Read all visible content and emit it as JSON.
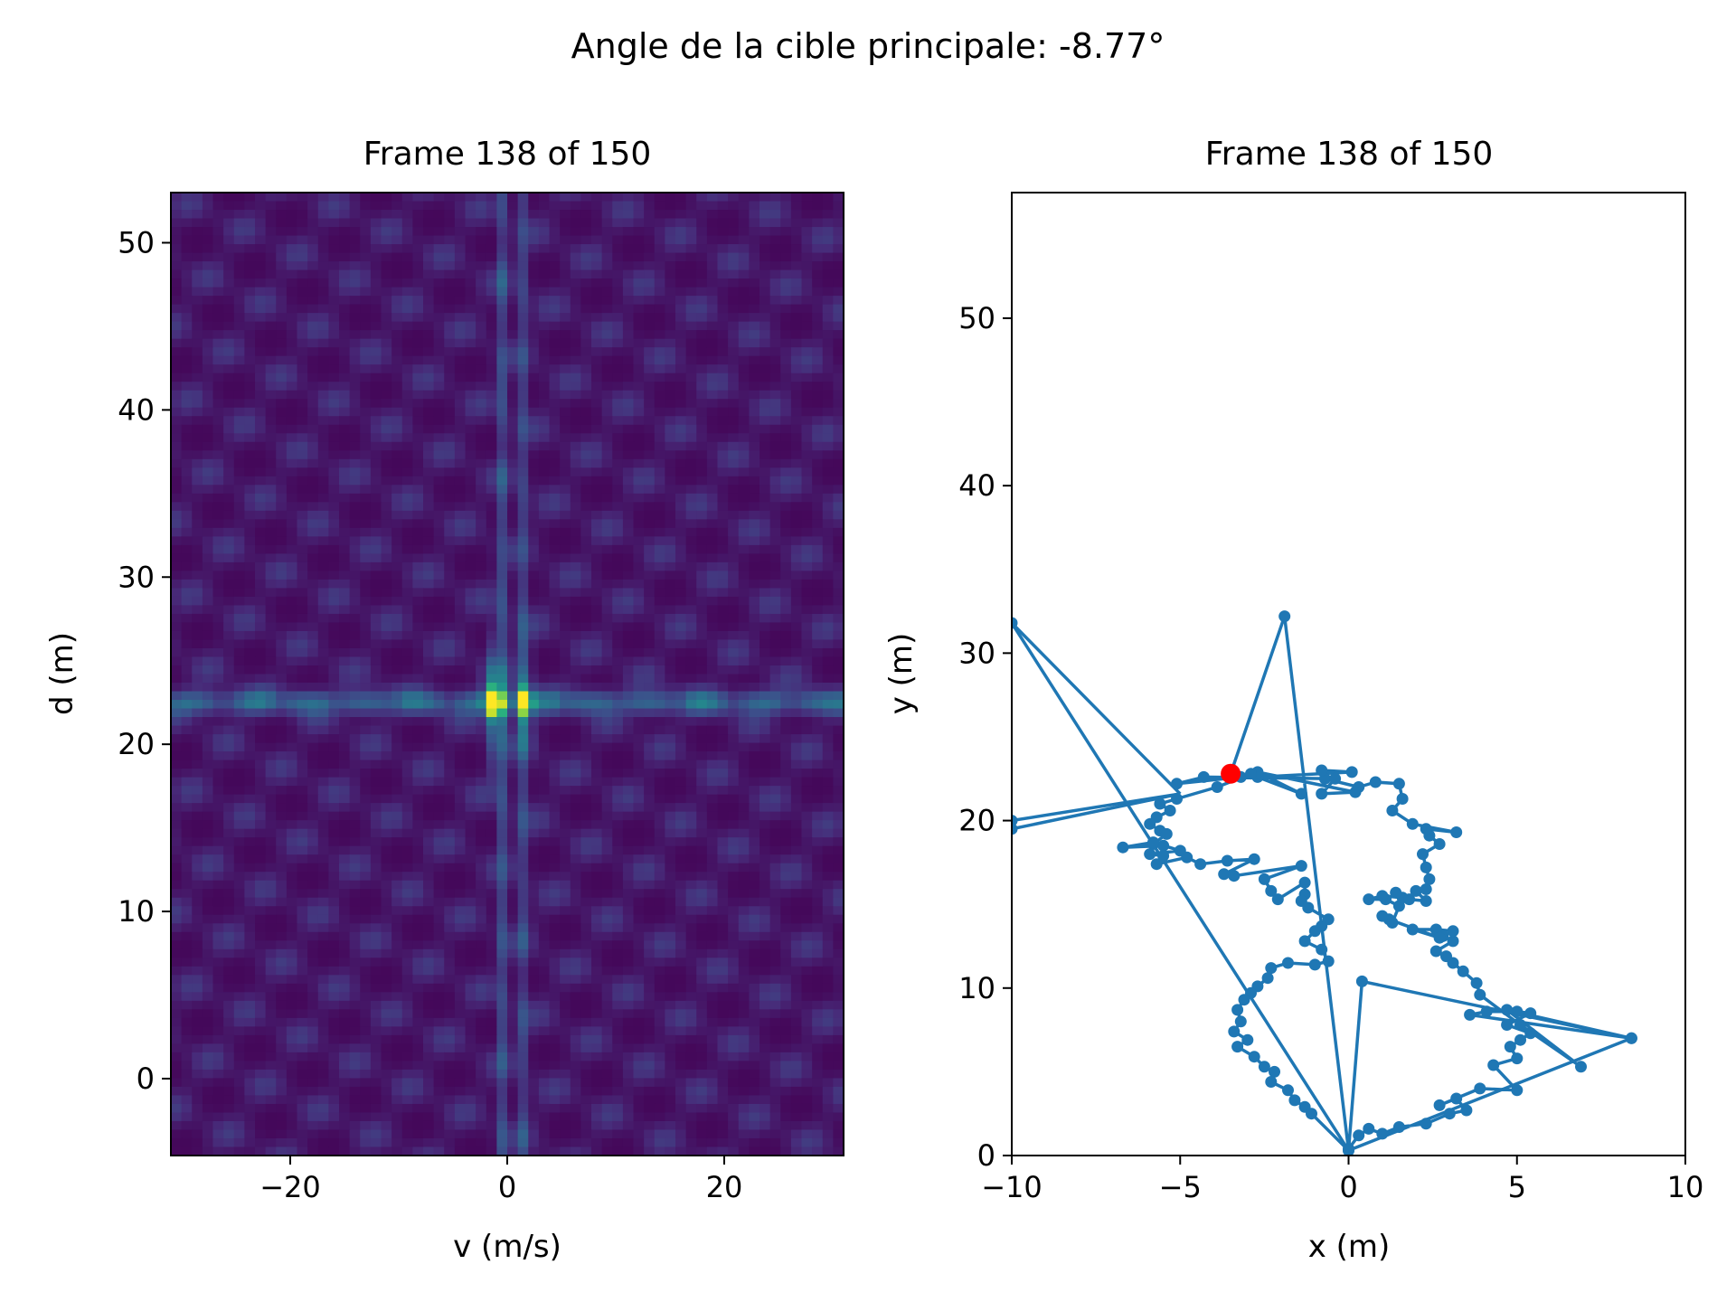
{
  "figure": {
    "suptitle": "Angle de la cible principale: -8.77°"
  },
  "colors": {
    "line": "#1f77b4",
    "marker_current": "#ff0000",
    "heatmap_low": "#440154",
    "heatmap_high": "#fde725"
  },
  "chart_data": [
    {
      "type": "heatmap",
      "title": "Frame 138 of 150",
      "xlabel": "v (m/s)",
      "ylabel": "d (m)",
      "xlim": [
        -31,
        31
      ],
      "ylim": [
        -4.6,
        53
      ],
      "xticks": [
        -20,
        0,
        20
      ],
      "xtick_labels": [
        "−20",
        "0",
        "20"
      ],
      "yticks": [
        0,
        10,
        20,
        30,
        40,
        50
      ],
      "ytick_labels": [
        "0",
        "10",
        "20",
        "30",
        "40",
        "50"
      ],
      "colormap": "viridis",
      "grid": false,
      "peaks": [
        {
          "v": -1.2,
          "d": 22.5,
          "level": 1.0
        },
        {
          "v": 1.5,
          "d": 22.5,
          "level": 0.62
        }
      ],
      "stripes": [
        {
          "orientation": "horizontal",
          "d": 22.5,
          "level": 0.3
        },
        {
          "orientation": "vertical",
          "v": -0.3,
          "level": 0.2
        },
        {
          "orientation": "vertical",
          "v": 1.5,
          "level": 0.15
        }
      ]
    },
    {
      "type": "line",
      "title": "Frame 138 of 150",
      "xlabel": "x (m)",
      "ylabel": "y (m)",
      "xlim": [
        -10,
        10
      ],
      "ylim": [
        0,
        57.5
      ],
      "xticks": [
        -10,
        -5,
        0,
        5,
        10
      ],
      "xtick_labels": [
        "−10",
        "−5",
        "0",
        "5",
        "10"
      ],
      "yticks": [
        0,
        10,
        20,
        30,
        40,
        50
      ],
      "ytick_labels": [
        "0",
        "10",
        "20",
        "30",
        "40",
        "50"
      ],
      "grid": false,
      "trajectory": [
        [
          0.0,
          0.4
        ],
        [
          0.3,
          1.2
        ],
        [
          0.6,
          1.6
        ],
        [
          1.0,
          1.3
        ],
        [
          1.5,
          1.7
        ],
        [
          2.3,
          1.9
        ],
        [
          3.0,
          2.5
        ],
        [
          3.5,
          2.7
        ],
        [
          3.2,
          3.4
        ],
        [
          2.7,
          3.0
        ],
        [
          3.9,
          4.0
        ],
        [
          5.0,
          3.9
        ],
        [
          4.3,
          5.4
        ],
        [
          5.0,
          5.8
        ],
        [
          4.8,
          6.5
        ],
        [
          5.1,
          6.9
        ],
        [
          5.4,
          7.3
        ],
        [
          4.7,
          7.8
        ],
        [
          5.4,
          8.5
        ],
        [
          5.0,
          8.6
        ],
        [
          4.1,
          8.6
        ],
        [
          3.6,
          8.4
        ],
        [
          8.4,
          7.0
        ],
        [
          4.7,
          8.7
        ],
        [
          6.9,
          5.3
        ],
        [
          5.1,
          7.8
        ],
        [
          3.9,
          9.6
        ],
        [
          3.8,
          10.3
        ],
        [
          3.4,
          11.0
        ],
        [
          3.1,
          11.5
        ],
        [
          2.9,
          11.9
        ],
        [
          2.6,
          12.2
        ],
        [
          3.1,
          12.8
        ],
        [
          2.8,
          13.1
        ],
        [
          3.1,
          13.4
        ],
        [
          2.6,
          13.5
        ],
        [
          1.9,
          13.5
        ],
        [
          2.7,
          13.0
        ],
        [
          1.2,
          14.1
        ],
        [
          1.0,
          14.3
        ],
        [
          1.3,
          13.9
        ],
        [
          1.5,
          14.9
        ],
        [
          1.1,
          15.3
        ],
        [
          0.6,
          15.3
        ],
        [
          1.0,
          15.5
        ],
        [
          1.6,
          15.4
        ],
        [
          1.4,
          15.7
        ],
        [
          1.8,
          15.3
        ],
        [
          2.3,
          15.2
        ],
        [
          2.0,
          15.8
        ],
        [
          2.3,
          15.9
        ],
        [
          2.4,
          16.5
        ],
        [
          2.3,
          17.2
        ],
        [
          2.2,
          18.0
        ],
        [
          2.7,
          18.6
        ],
        [
          2.4,
          19.1
        ],
        [
          2.3,
          19.5
        ],
        [
          3.2,
          19.3
        ],
        [
          1.9,
          19.8
        ],
        [
          1.3,
          20.6
        ],
        [
          1.6,
          21.3
        ],
        [
          1.5,
          22.2
        ],
        [
          0.8,
          22.3
        ],
        [
          0.3,
          22.0
        ],
        [
          -0.7,
          22.5
        ],
        [
          -0.8,
          23.0
        ],
        [
          0.1,
          22.9
        ],
        [
          -2.7,
          22.6
        ],
        [
          -1.4,
          21.6
        ],
        [
          -2.7,
          22.9
        ],
        [
          0.2,
          21.7
        ],
        [
          -0.8,
          21.6
        ],
        [
          -0.4,
          22.5
        ],
        [
          -4.3,
          22.6
        ],
        [
          -5.1,
          22.2
        ],
        [
          -3.2,
          22.6
        ],
        [
          -2.9,
          22.8
        ],
        [
          -3.9,
          22.0
        ],
        [
          -5.1,
          21.3
        ],
        [
          -5.6,
          21.0
        ],
        [
          -5.3,
          20.6
        ],
        [
          -5.7,
          20.2
        ],
        [
          -5.9,
          19.8
        ],
        [
          -5.6,
          19.4
        ],
        [
          -5.4,
          19.2
        ],
        [
          -5.8,
          18.6
        ],
        [
          -5.5,
          18.5
        ],
        [
          -6.7,
          18.4
        ],
        [
          -5.8,
          18.7
        ],
        [
          -5.0,
          18.2
        ],
        [
          -5.9,
          18.0
        ],
        [
          -5.5,
          17.9
        ],
        [
          -5.7,
          17.4
        ],
        [
          -4.8,
          17.8
        ],
        [
          -4.4,
          17.4
        ],
        [
          -3.6,
          17.6
        ],
        [
          -2.8,
          17.7
        ],
        [
          -3.7,
          16.8
        ],
        [
          -3.4,
          16.7
        ],
        [
          -1.4,
          17.3
        ],
        [
          -2.5,
          16.5
        ],
        [
          -2.3,
          15.8
        ],
        [
          -2.1,
          15.3
        ],
        [
          -1.3,
          16.3
        ],
        [
          -1.3,
          15.6
        ],
        [
          -1.4,
          15.2
        ],
        [
          -1.2,
          14.8
        ],
        [
          -0.6,
          14.1
        ],
        [
          -0.8,
          13.7
        ],
        [
          -1.0,
          13.4
        ],
        [
          -1.3,
          12.8
        ],
        [
          -0.8,
          12.3
        ],
        [
          -0.6,
          11.6
        ],
        [
          -1.0,
          11.4
        ],
        [
          -1.8,
          11.5
        ],
        [
          -2.3,
          11.2
        ],
        [
          -2.4,
          10.6
        ],
        [
          -2.7,
          10.1
        ],
        [
          -2.9,
          9.7
        ],
        [
          -3.1,
          9.3
        ],
        [
          -3.3,
          8.7
        ],
        [
          -3.2,
          8.0
        ],
        [
          -3.4,
          7.4
        ],
        [
          -3.0,
          6.9
        ],
        [
          -3.3,
          6.5
        ],
        [
          -2.8,
          5.9
        ],
        [
          -2.5,
          5.3
        ],
        [
          -2.2,
          5.0
        ],
        [
          -2.3,
          4.4
        ],
        [
          -1.8,
          3.9
        ],
        [
          -1.6,
          3.3
        ],
        [
          -1.3,
          2.9
        ],
        [
          -1.1,
          2.5
        ],
        [
          0.0,
          0.3
        ],
        [
          0.4,
          10.4
        ],
        [
          8.4,
          7.0
        ],
        [
          0.0,
          0.3
        ],
        [
          -1.9,
          32.2
        ],
        [
          -3.5,
          22.8
        ]
      ],
      "current_point": {
        "x": -3.5,
        "y": 22.8
      },
      "outliers": [
        {
          "x": -10,
          "y": 31.8
        },
        {
          "x": -10,
          "y": 20.0
        },
        {
          "x": -10,
          "y": 19.5
        }
      ]
    }
  ]
}
